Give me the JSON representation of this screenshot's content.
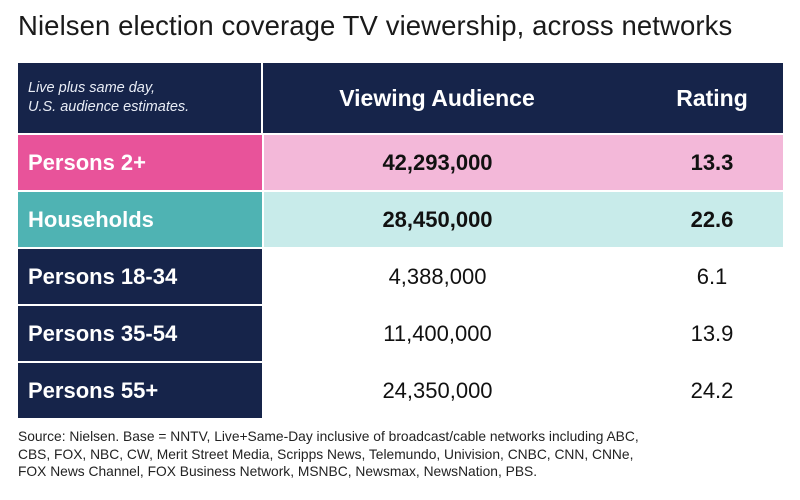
{
  "title": "Nielsen election coverage TV viewership, across networks",
  "colors": {
    "header_bg": "#16244a",
    "persons_2plus_label": "#e8539a",
    "persons_2plus_values": "#f3b8d9",
    "households_label": "#4fb3b3",
    "households_values": "#c8ebea",
    "dark_label": "#16244a",
    "plain_values": "#ffffff"
  },
  "chart_data": {
    "type": "table",
    "header_note": [
      "Live plus same day,",
      "U.S. audience estimates."
    ],
    "columns": [
      "Viewing Audience",
      "Rating"
    ],
    "rows": [
      {
        "label": "Persons 2+",
        "viewing_audience": "42,293,000",
        "rating": "13.3",
        "bold": true,
        "label_color": "#e8539a",
        "value_bg": "#f3b8d9"
      },
      {
        "label": "Households",
        "viewing_audience": "28,450,000",
        "rating": "22.6",
        "bold": true,
        "label_color": "#4fb3b3",
        "value_bg": "#c8ebea"
      },
      {
        "label": "Persons 18-34",
        "viewing_audience": "4,388,000",
        "rating": "6.1",
        "bold": false,
        "label_color": "#16244a",
        "value_bg": "#ffffff"
      },
      {
        "label": "Persons 35-54",
        "viewing_audience": "11,400,000",
        "rating": "13.9",
        "bold": false,
        "label_color": "#16244a",
        "value_bg": "#ffffff"
      },
      {
        "label": "Persons 55+",
        "viewing_audience": "24,350,000",
        "rating": "24.2",
        "bold": false,
        "label_color": "#16244a",
        "value_bg": "#ffffff"
      }
    ]
  },
  "footer": [
    "Source: Nielsen. Base = NNTV, Live+Same-Day inclusive of broadcast/cable networks including ABC,",
    "CBS, FOX, NBC, CW, Merit Street Media, Scripps News, Telemundo, Univision, CNBC, CNN, CNNe,",
    "FOX News Channel, FOX Business Network, MSNBC, Newsmax, NewsNation, PBS."
  ]
}
